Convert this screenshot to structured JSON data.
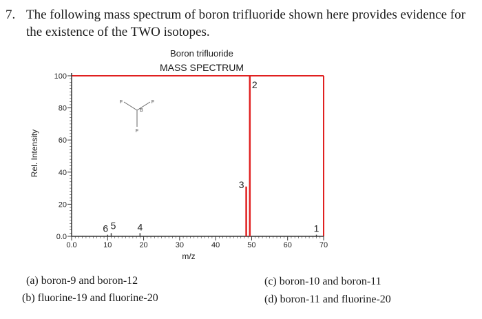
{
  "question": {
    "number": "7.",
    "line1": "The following mass spectrum of boron trifluoride shown here provides evidence for",
    "line2": "the existence of the TWO isotopes."
  },
  "chart_data": {
    "type": "bar",
    "title": "Boron trifluoride",
    "subtitle": "MASS SPECTRUM",
    "xlabel": "m/z",
    "ylabel": "Rel. Intensity",
    "xlim": [
      0,
      70
    ],
    "ylim": [
      0,
      100
    ],
    "x_ticks": [
      "0.0",
      "10",
      "20",
      "30",
      "40",
      "50",
      "60",
      "70"
    ],
    "y_ticks": [
      "0.0",
      "20",
      "40",
      "60",
      "80",
      "100"
    ],
    "grid": false,
    "peaks": [
      {
        "label": "6",
        "x": 10,
        "y": 1
      },
      {
        "label": "5",
        "x": 11,
        "y": 2
      },
      {
        "label": "4",
        "x": 19,
        "y": 2
      },
      {
        "label": "3",
        "x": 48.5,
        "y": 31
      },
      {
        "label": "2",
        "x": 49.5,
        "y": 100
      },
      {
        "label": "1",
        "x": 68,
        "y": 1
      }
    ],
    "structure_labels": {
      "top_left": "F",
      "top_right": "F",
      "center": "B",
      "bottom": "F"
    }
  },
  "options": {
    "a": "(a) boron-9 and boron-12",
    "b": "(b) fluorine-19 and fluorine-20",
    "c": "(c) boron-10 and boron-11",
    "d": "(d) boron-11 and fluorine-20"
  },
  "colors": {
    "peak": "#e02020",
    "frame": "#e02020",
    "axis": "#333333"
  }
}
